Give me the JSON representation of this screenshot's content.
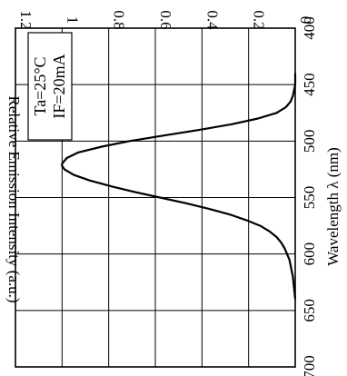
{
  "chart_data": {
    "type": "line",
    "xlabel": "Wavelength λ (nm)",
    "ylabel": "Relative Emission Intensity (a.u.)",
    "xlim": [
      400,
      700
    ],
    "ylim": [
      0,
      1.2
    ],
    "x_ticks": [
      "400",
      "450",
      "500",
      "550",
      "600",
      "650",
      "700"
    ],
    "y_ticks": [
      "0",
      "0.2",
      "0.4",
      "0.6",
      "0.8",
      "1",
      "1.2"
    ],
    "grid": true,
    "orientation": "rotated 90° clockwise",
    "conditions": [
      "Ta=25°C",
      "IF=20mA"
    ],
    "series": [
      {
        "x": [
          440,
          450,
          460,
          465,
          470,
          475,
          480,
          485,
          490,
          495,
          500,
          505,
          510,
          515,
          520,
          522,
          525,
          530,
          535,
          540,
          545,
          550,
          555,
          560,
          565,
          570,
          575,
          580,
          585,
          590,
          595,
          600,
          605,
          610,
          615,
          620,
          630,
          640
        ],
        "y": [
          0.0,
          0.0,
          0.01,
          0.02,
          0.04,
          0.08,
          0.16,
          0.27,
          0.41,
          0.56,
          0.71,
          0.83,
          0.93,
          0.98,
          1.0,
          1.0,
          0.99,
          0.95,
          0.88,
          0.79,
          0.69,
          0.58,
          0.47,
          0.37,
          0.28,
          0.21,
          0.15,
          0.11,
          0.08,
          0.06,
          0.045,
          0.035,
          0.025,
          0.02,
          0.015,
          0.01,
          0.005,
          0.0
        ]
      }
    ]
  }
}
